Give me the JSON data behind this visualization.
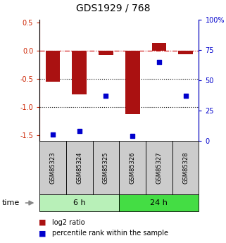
{
  "title": "GDS1929 / 768",
  "samples": [
    "GSM85323",
    "GSM85324",
    "GSM85325",
    "GSM85326",
    "GSM85327",
    "GSM85328"
  ],
  "log2_ratio": [
    -0.55,
    -0.78,
    -0.08,
    -1.13,
    0.13,
    -0.07
  ],
  "percentile_rank": [
    5,
    8,
    37,
    4,
    65,
    37
  ],
  "groups": [
    {
      "label": "6 h",
      "indices": [
        0,
        1,
        2
      ],
      "color": "#b8f0b8"
    },
    {
      "label": "24 h",
      "indices": [
        3,
        4,
        5
      ],
      "color": "#44dd44"
    }
  ],
  "bar_color": "#aa1111",
  "dot_color": "#0000cc",
  "ylim_left": [
    -1.6,
    0.55
  ],
  "ylim_right": [
    0,
    100
  ],
  "yticks_left": [
    -1.5,
    -1.0,
    -0.5,
    0.0,
    0.5
  ],
  "yticks_right": [
    0,
    25,
    50,
    75,
    100
  ],
  "hline_y": 0.0,
  "dotted_lines": [
    -0.5,
    -1.0
  ],
  "bar_width": 0.55,
  "legend_log2_label": "log2 ratio",
  "legend_pct_label": "percentile rank within the sample",
  "time_label": "time",
  "left_axis_color": "#cc2200",
  "right_axis_color": "#0000cc",
  "sample_box_color": "#cccccc",
  "title_fontsize": 10,
  "tick_fontsize": 7,
  "legend_fontsize": 7,
  "group_label_fontsize": 8,
  "sample_label_fontsize": 6
}
